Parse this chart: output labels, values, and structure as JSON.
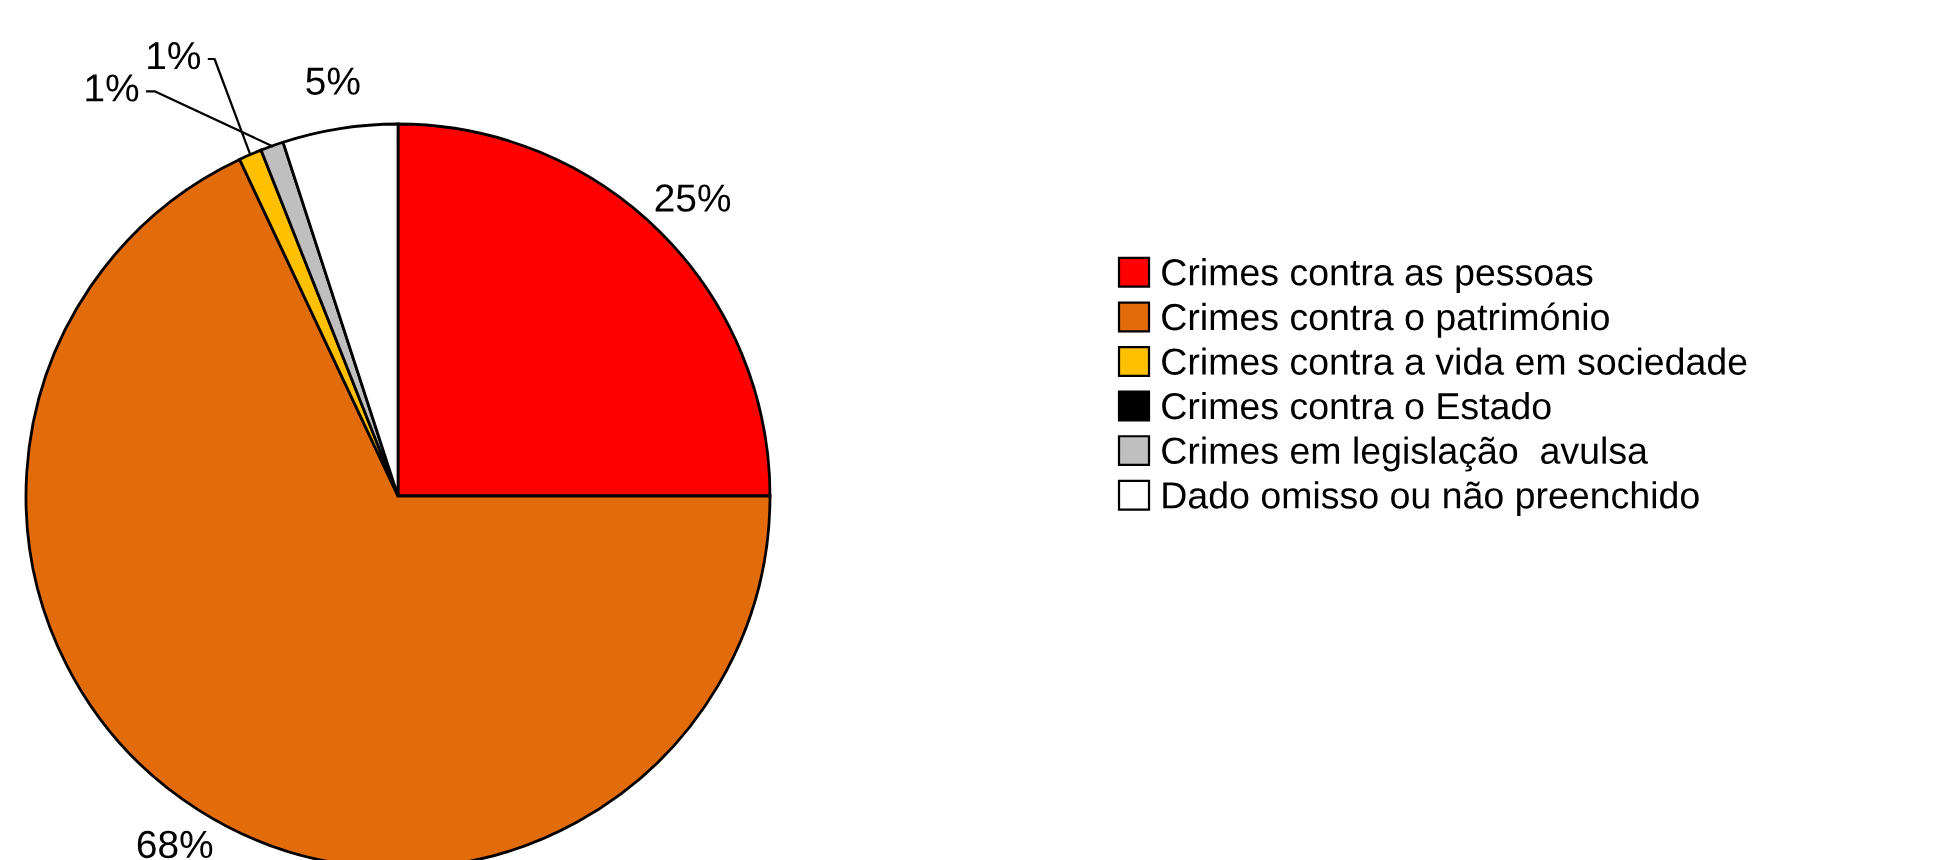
{
  "chart_data": {
    "type": "pie",
    "categories": [
      "Crimes contra as pessoas",
      "Crimes contra o património",
      "Crimes contra a vida em sociedade",
      "Crimes contra o Estado",
      "Crimes em legislação  avulsa",
      "Dado omisso ou não preenchido"
    ],
    "values": [
      25,
      68,
      1,
      0,
      1,
      5
    ],
    "colors": [
      "#ff0000",
      "#e36c0a",
      "#ffc000",
      "#000000",
      "#bfbfbf",
      "#ffffff"
    ],
    "value_labels": [
      "25%",
      "68%",
      "1%",
      null,
      "1%",
      "5%"
    ],
    "legend": "right"
  }
}
